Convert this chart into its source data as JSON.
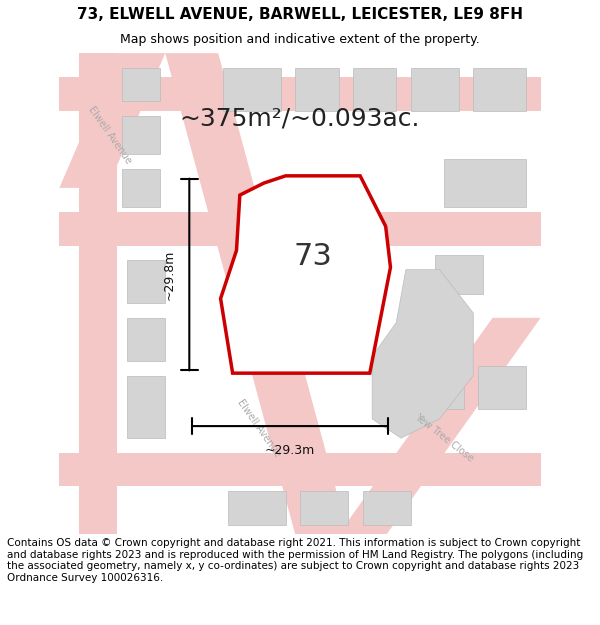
{
  "title": "73, ELWELL AVENUE, BARWELL, LEICESTER, LE9 8FH",
  "subtitle": "Map shows position and indicative extent of the property.",
  "area_text": "~375m²/~0.093ac.",
  "number_label": "73",
  "dim_vertical": "~29.8m",
  "dim_horizontal": "~29.3m",
  "footer": "Contains OS data © Crown copyright and database right 2021. This information is subject to Crown copyright and database rights 2023 and is reproduced with the permission of HM Land Registry. The polygons (including the associated geometry, namely x, y co-ordinates) are subject to Crown copyright and database rights 2023 Ordnance Survey 100026316.",
  "bg_color": "#f2f2f2",
  "property_fill": "#ffffff",
  "property_edge": "#cc0000",
  "road_color": "#f5c8c8",
  "building_color": "#d4d4d4",
  "title_fontsize": 11,
  "subtitle_fontsize": 9,
  "footer_fontsize": 7.5,
  "label_fontsize": 9,
  "area_fontsize": 18,
  "number_fontsize": 22
}
